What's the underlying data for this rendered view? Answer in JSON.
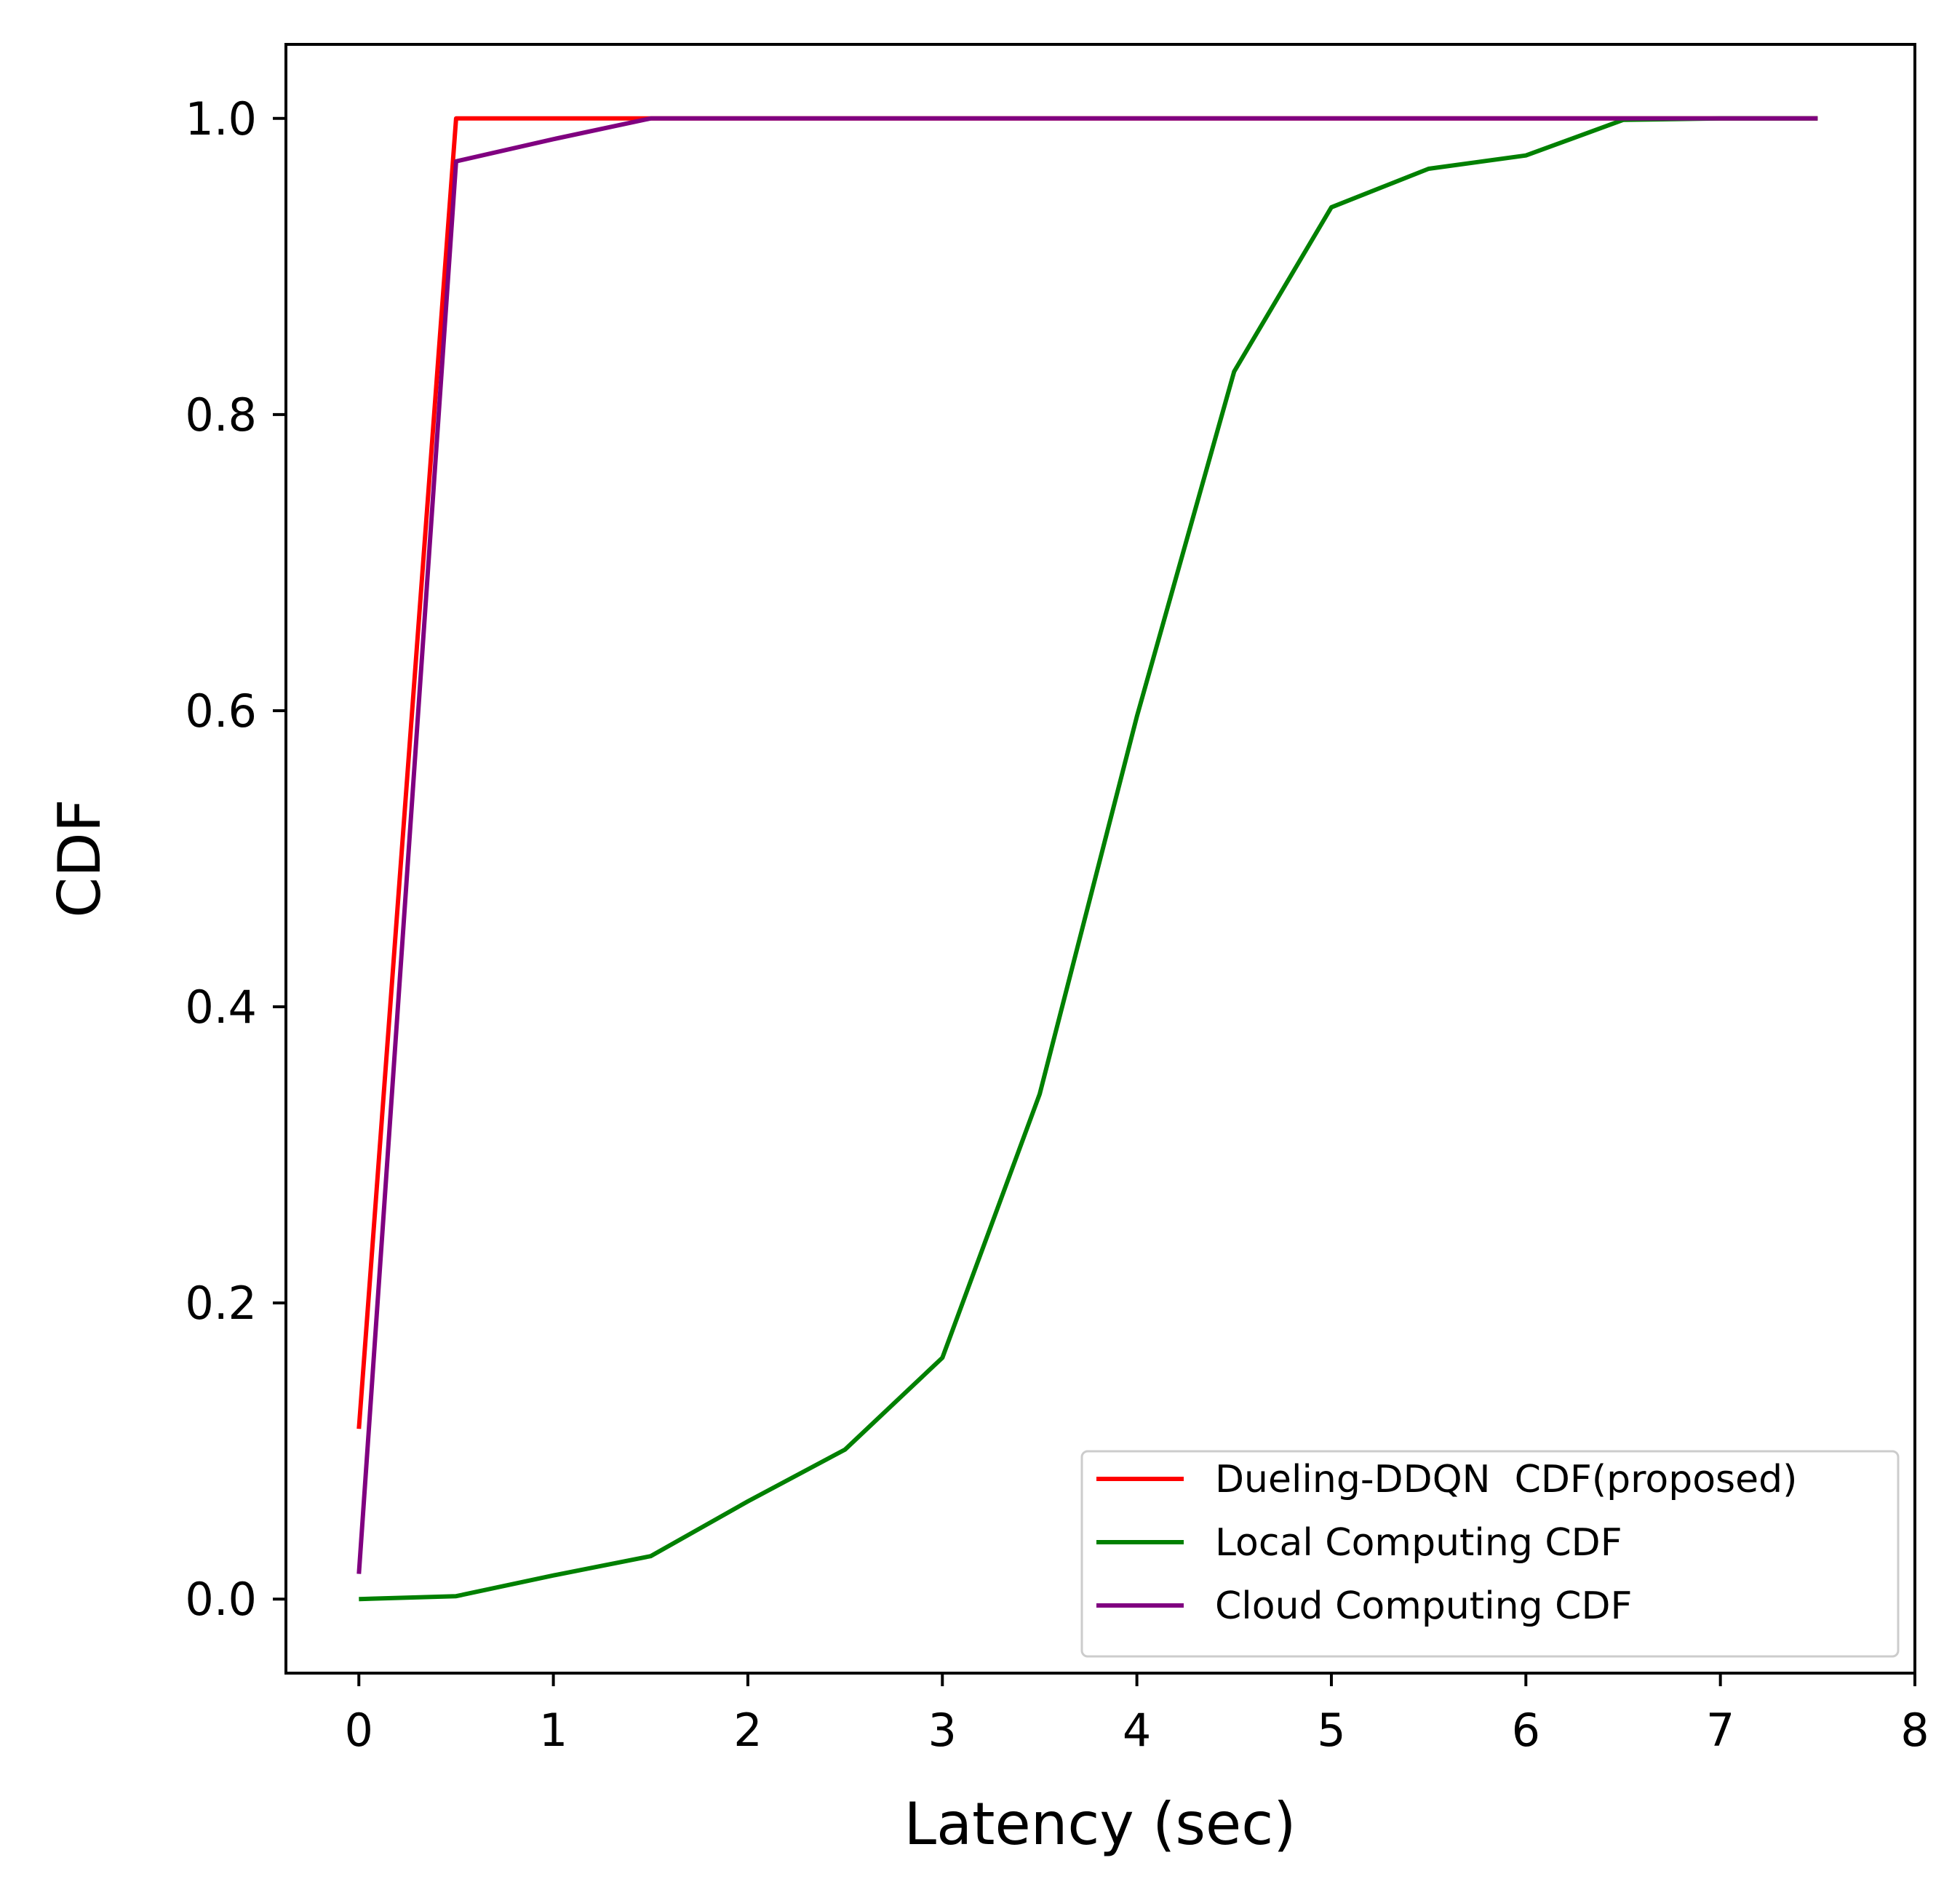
{
  "chart_data": {
    "type": "line",
    "xlabel": "Latency (sec)",
    "ylabel": "CDF",
    "xlim": [
      -0.375,
      8
    ],
    "ylim": [
      -0.05,
      1.05
    ],
    "xticks": [
      "0",
      "1",
      "2",
      "3",
      "4",
      "5",
      "6",
      "7",
      "8"
    ],
    "yticks": [
      "0.0",
      "0.2",
      "0.4",
      "0.6",
      "0.8",
      "1.0"
    ],
    "grid": false,
    "legend_position": "lower-right",
    "series": [
      {
        "name": "Dueling-DDQN  CDF(proposed)",
        "color": "#ff0000",
        "x": [
          0,
          0.5,
          1,
          1.5,
          2,
          2.5,
          3,
          3.5,
          4,
          4.5,
          5,
          5.5,
          6,
          6.5,
          7,
          7.5
        ],
        "y": [
          0.115,
          1.0,
          1.0,
          1.0,
          1.0,
          1.0,
          1.0,
          1.0,
          1.0,
          1.0,
          1.0,
          1.0,
          1.0,
          1.0,
          1.0,
          1.0
        ]
      },
      {
        "name": "Local Computing CDF",
        "color": "#008000",
        "x": [
          0,
          0.5,
          1,
          1.5,
          2,
          2.5,
          3,
          3.5,
          4,
          4.5,
          5,
          5.5,
          6,
          6.5,
          7,
          7.5
        ],
        "y": [
          0.0,
          0.002,
          0.016,
          0.029,
          0.066,
          0.101,
          0.163,
          0.341,
          0.596,
          0.829,
          0.94,
          0.966,
          0.975,
          0.999,
          1.0,
          1.0
        ]
      },
      {
        "name": "Cloud Computing CDF",
        "color": "#800080",
        "x": [
          0,
          0.5,
          1,
          1.5,
          2,
          2.5,
          3,
          3.5,
          4,
          4.5,
          5,
          5.5,
          6,
          6.5,
          7,
          7.5
        ],
        "y": [
          0.017,
          0.971,
          0.986,
          1.0,
          1.0,
          1.0,
          1.0,
          1.0,
          1.0,
          1.0,
          1.0,
          1.0,
          1.0,
          1.0,
          1.0,
          1.0
        ]
      }
    ]
  }
}
